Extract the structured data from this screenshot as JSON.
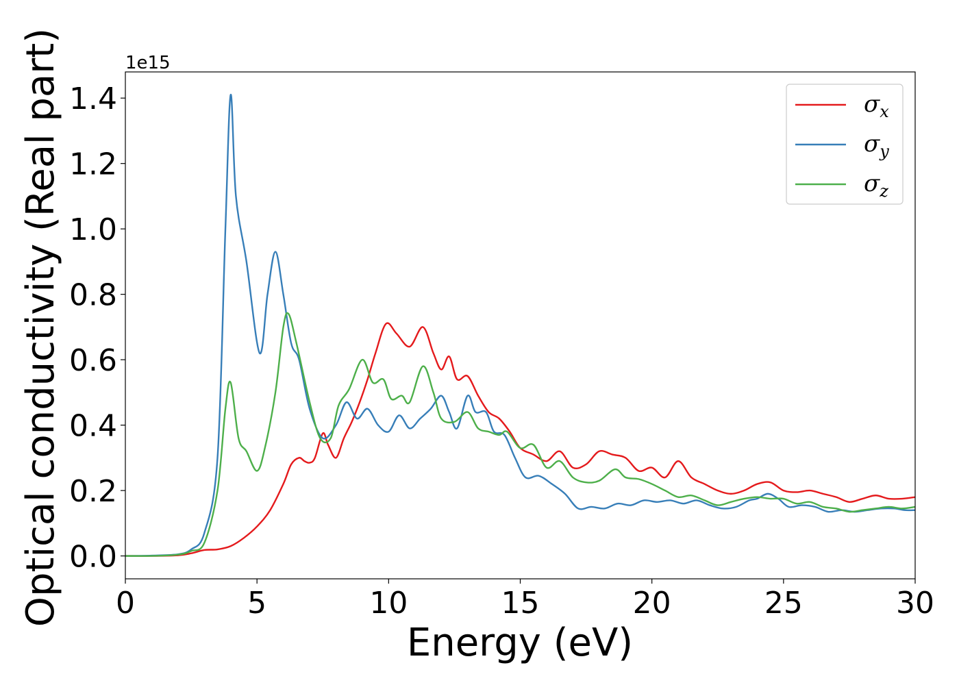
{
  "chart_data": {
    "type": "line",
    "title": "",
    "xlabel": "Energy (eV)",
    "ylabel": "Optical conductivity (Real part)",
    "y_offset_label": "1e15",
    "xlim": [
      0,
      30
    ],
    "ylim": [
      -0.07,
      1.48
    ],
    "x_ticks": [
      0,
      5,
      10,
      15,
      20,
      25,
      30
    ],
    "x_tick_labels": [
      "0",
      "5",
      "10",
      "15",
      "20",
      "25",
      "30"
    ],
    "y_ticks": [
      0.0,
      0.2,
      0.4,
      0.6,
      0.8,
      1.0,
      1.2,
      1.4
    ],
    "y_tick_labels": [
      "0.0",
      "0.2",
      "0.4",
      "0.6",
      "0.8",
      "1.0",
      "1.2",
      "1.4"
    ],
    "grid": false,
    "legend_position": "top-right",
    "series": [
      {
        "name": "σx",
        "symbol": "σ",
        "subscript": "x",
        "color": "#e41a1c",
        "points": [
          [
            0,
            0
          ],
          [
            1,
            0.0
          ],
          [
            2,
            0.002
          ],
          [
            2.5,
            0.008
          ],
          [
            3,
            0.018
          ],
          [
            3.5,
            0.02
          ],
          [
            4,
            0.03
          ],
          [
            4.5,
            0.055
          ],
          [
            5,
            0.09
          ],
          [
            5.5,
            0.14
          ],
          [
            6,
            0.22
          ],
          [
            6.3,
            0.28
          ],
          [
            6.6,
            0.3
          ],
          [
            6.8,
            0.29
          ],
          [
            7.0,
            0.285
          ],
          [
            7.2,
            0.3
          ],
          [
            7.5,
            0.375
          ],
          [
            7.7,
            0.34
          ],
          [
            8.0,
            0.3
          ],
          [
            8.3,
            0.36
          ],
          [
            8.6,
            0.41
          ],
          [
            8.9,
            0.47
          ],
          [
            9.2,
            0.54
          ],
          [
            9.5,
            0.62
          ],
          [
            9.9,
            0.71
          ],
          [
            10.3,
            0.68
          ],
          [
            10.8,
            0.64
          ],
          [
            11.3,
            0.7
          ],
          [
            11.7,
            0.62
          ],
          [
            12.0,
            0.57
          ],
          [
            12.3,
            0.61
          ],
          [
            12.6,
            0.54
          ],
          [
            13.0,
            0.55
          ],
          [
            13.4,
            0.49
          ],
          [
            13.8,
            0.44
          ],
          [
            14.2,
            0.42
          ],
          [
            14.6,
            0.38
          ],
          [
            15.0,
            0.33
          ],
          [
            15.5,
            0.31
          ],
          [
            16.0,
            0.29
          ],
          [
            16.5,
            0.32
          ],
          [
            17.0,
            0.27
          ],
          [
            17.5,
            0.28
          ],
          [
            18.0,
            0.32
          ],
          [
            18.5,
            0.31
          ],
          [
            19.0,
            0.3
          ],
          [
            19.5,
            0.26
          ],
          [
            20.0,
            0.27
          ],
          [
            20.5,
            0.24
          ],
          [
            21.0,
            0.29
          ],
          [
            21.5,
            0.24
          ],
          [
            22.0,
            0.22
          ],
          [
            22.5,
            0.2
          ],
          [
            23.0,
            0.19
          ],
          [
            23.5,
            0.2
          ],
          [
            24.0,
            0.22
          ],
          [
            24.5,
            0.225
          ],
          [
            25.0,
            0.2
          ],
          [
            25.5,
            0.195
          ],
          [
            26.0,
            0.2
          ],
          [
            26.5,
            0.19
          ],
          [
            27.0,
            0.18
          ],
          [
            27.5,
            0.165
          ],
          [
            28.0,
            0.175
          ],
          [
            28.5,
            0.185
          ],
          [
            29.0,
            0.175
          ],
          [
            29.5,
            0.175
          ],
          [
            30.0,
            0.18
          ]
        ]
      },
      {
        "name": "σy",
        "symbol": "σ",
        "subscript": "y",
        "color": "#377eb8",
        "points": [
          [
            0,
            0
          ],
          [
            1,
            0.001
          ],
          [
            2,
            0.005
          ],
          [
            2.5,
            0.02
          ],
          [
            3,
            0.07
          ],
          [
            3.5,
            0.3
          ],
          [
            3.8,
            1.0
          ],
          [
            4.0,
            1.41
          ],
          [
            4.2,
            1.1
          ],
          [
            4.6,
            0.9
          ],
          [
            5.1,
            0.62
          ],
          [
            5.4,
            0.8
          ],
          [
            5.7,
            0.93
          ],
          [
            6.0,
            0.8
          ],
          [
            6.3,
            0.65
          ],
          [
            6.6,
            0.6
          ],
          [
            7.0,
            0.45
          ],
          [
            7.5,
            0.36
          ],
          [
            8.0,
            0.4
          ],
          [
            8.4,
            0.47
          ],
          [
            8.8,
            0.42
          ],
          [
            9.2,
            0.45
          ],
          [
            9.6,
            0.4
          ],
          [
            10.0,
            0.38
          ],
          [
            10.4,
            0.43
          ],
          [
            10.8,
            0.39
          ],
          [
            11.2,
            0.42
          ],
          [
            11.6,
            0.45
          ],
          [
            12.0,
            0.49
          ],
          [
            12.3,
            0.44
          ],
          [
            12.6,
            0.39
          ],
          [
            13.0,
            0.49
          ],
          [
            13.3,
            0.44
          ],
          [
            13.7,
            0.44
          ],
          [
            14.0,
            0.38
          ],
          [
            14.4,
            0.37
          ],
          [
            14.8,
            0.3
          ],
          [
            15.2,
            0.24
          ],
          [
            15.7,
            0.245
          ],
          [
            16.2,
            0.22
          ],
          [
            16.7,
            0.19
          ],
          [
            17.2,
            0.145
          ],
          [
            17.7,
            0.15
          ],
          [
            18.2,
            0.145
          ],
          [
            18.7,
            0.16
          ],
          [
            19.2,
            0.155
          ],
          [
            19.7,
            0.17
          ],
          [
            20.2,
            0.165
          ],
          [
            20.7,
            0.17
          ],
          [
            21.2,
            0.16
          ],
          [
            21.7,
            0.17
          ],
          [
            22.2,
            0.155
          ],
          [
            22.7,
            0.145
          ],
          [
            23.2,
            0.15
          ],
          [
            23.7,
            0.17
          ],
          [
            24.0,
            0.175
          ],
          [
            24.4,
            0.19
          ],
          [
            24.8,
            0.175
          ],
          [
            25.2,
            0.15
          ],
          [
            25.7,
            0.155
          ],
          [
            26.2,
            0.15
          ],
          [
            26.7,
            0.135
          ],
          [
            27.2,
            0.14
          ],
          [
            27.7,
            0.135
          ],
          [
            28.2,
            0.14
          ],
          [
            28.7,
            0.145
          ],
          [
            29.2,
            0.145
          ],
          [
            29.6,
            0.14
          ],
          [
            30.0,
            0.14
          ]
        ]
      },
      {
        "name": "σz",
        "symbol": "σ",
        "subscript": "z",
        "color": "#4daf4a",
        "points": [
          [
            0,
            0
          ],
          [
            1,
            0.0
          ],
          [
            2,
            0.004
          ],
          [
            2.5,
            0.015
          ],
          [
            3,
            0.04
          ],
          [
            3.5,
            0.2
          ],
          [
            3.8,
            0.45
          ],
          [
            4.0,
            0.53
          ],
          [
            4.3,
            0.36
          ],
          [
            4.6,
            0.32
          ],
          [
            5.0,
            0.26
          ],
          [
            5.3,
            0.33
          ],
          [
            5.7,
            0.5
          ],
          [
            6.0,
            0.7
          ],
          [
            6.2,
            0.74
          ],
          [
            6.5,
            0.65
          ],
          [
            7.0,
            0.47
          ],
          [
            7.4,
            0.36
          ],
          [
            7.8,
            0.36
          ],
          [
            8.1,
            0.46
          ],
          [
            8.5,
            0.51
          ],
          [
            9.0,
            0.6
          ],
          [
            9.4,
            0.53
          ],
          [
            9.8,
            0.54
          ],
          [
            10.1,
            0.48
          ],
          [
            10.5,
            0.49
          ],
          [
            10.8,
            0.47
          ],
          [
            11.3,
            0.58
          ],
          [
            11.7,
            0.5
          ],
          [
            12.0,
            0.42
          ],
          [
            12.5,
            0.41
          ],
          [
            13.0,
            0.44
          ],
          [
            13.4,
            0.39
          ],
          [
            13.8,
            0.38
          ],
          [
            14.2,
            0.37
          ],
          [
            14.5,
            0.38
          ],
          [
            15.0,
            0.33
          ],
          [
            15.5,
            0.34
          ],
          [
            16.0,
            0.27
          ],
          [
            16.5,
            0.29
          ],
          [
            17.0,
            0.24
          ],
          [
            17.5,
            0.225
          ],
          [
            18.0,
            0.23
          ],
          [
            18.6,
            0.265
          ],
          [
            19.0,
            0.24
          ],
          [
            19.5,
            0.235
          ],
          [
            20.0,
            0.22
          ],
          [
            20.5,
            0.2
          ],
          [
            21.0,
            0.18
          ],
          [
            21.5,
            0.185
          ],
          [
            22.0,
            0.17
          ],
          [
            22.5,
            0.155
          ],
          [
            23.0,
            0.165
          ],
          [
            23.5,
            0.175
          ],
          [
            24.0,
            0.18
          ],
          [
            24.5,
            0.175
          ],
          [
            25.0,
            0.175
          ],
          [
            25.5,
            0.16
          ],
          [
            26.0,
            0.165
          ],
          [
            26.5,
            0.15
          ],
          [
            27.0,
            0.145
          ],
          [
            27.5,
            0.135
          ],
          [
            28.0,
            0.14
          ],
          [
            28.5,
            0.145
          ],
          [
            29.0,
            0.15
          ],
          [
            29.5,
            0.145
          ],
          [
            30.0,
            0.15
          ]
        ]
      }
    ]
  }
}
